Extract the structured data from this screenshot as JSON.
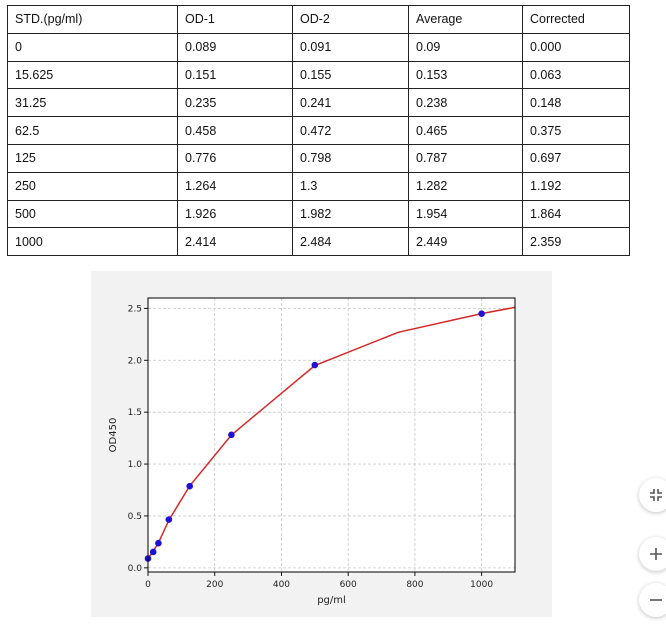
{
  "table": {
    "headers": [
      "STD.(pg/ml)",
      "OD-1",
      "OD-2",
      "Average",
      "Corrected"
    ],
    "rows": [
      [
        "0",
        "0.089",
        "0.091",
        "0.09",
        "0.000"
      ],
      [
        "15.625",
        "0.151",
        "0.155",
        "0.153",
        "0.063"
      ],
      [
        "31.25",
        "0.235",
        "0.241",
        "0.238",
        "0.148"
      ],
      [
        "62.5",
        "0.458",
        "0.472",
        "0.465",
        "0.375"
      ],
      [
        "125",
        "0.776",
        "0.798",
        "0.787",
        "0.697"
      ],
      [
        "250",
        "1.264",
        "1.3",
        "1.282",
        "1.192"
      ],
      [
        "500",
        "1.926",
        "1.982",
        "1.954",
        "1.864"
      ],
      [
        "1000",
        "2.414",
        "2.484",
        "2.449",
        "2.359"
      ]
    ]
  },
  "chart_data": {
    "type": "scatter",
    "xlabel": "pg/ml",
    "ylabel": "OD450",
    "xlim": [
      0,
      1100
    ],
    "ylim": [
      -0.04,
      2.6
    ],
    "xticks": [
      0,
      200,
      400,
      600,
      800,
      1000
    ],
    "yticks": [
      0.0,
      0.5,
      1.0,
      1.5,
      2.0,
      2.5
    ],
    "xtick_labels": [
      "0",
      "200",
      "400",
      "600",
      "800",
      "1000"
    ],
    "ytick_labels": [
      "0.0",
      "0.5",
      "1.0",
      "1.5",
      "2.0",
      "2.5"
    ],
    "grid": true,
    "points": {
      "x": [
        0,
        15.625,
        31.25,
        62.5,
        125,
        250,
        500,
        1000
      ],
      "y": [
        0.09,
        0.153,
        0.238,
        0.465,
        0.787,
        1.282,
        1.954,
        2.449
      ]
    },
    "fit_curve": {
      "x": [
        0,
        15.625,
        31.25,
        62.5,
        125,
        250,
        500,
        750,
        1000,
        1100
      ],
      "y": [
        0.09,
        0.16,
        0.24,
        0.46,
        0.79,
        1.28,
        1.95,
        2.27,
        2.45,
        2.51
      ]
    },
    "point_color": "#1f10d6",
    "curve_color": "#d62728"
  },
  "controls": {
    "fit_screen_icon": "collapse-icon",
    "zoom_in_icon": "plus-icon",
    "zoom_out_icon": "minus-icon"
  }
}
